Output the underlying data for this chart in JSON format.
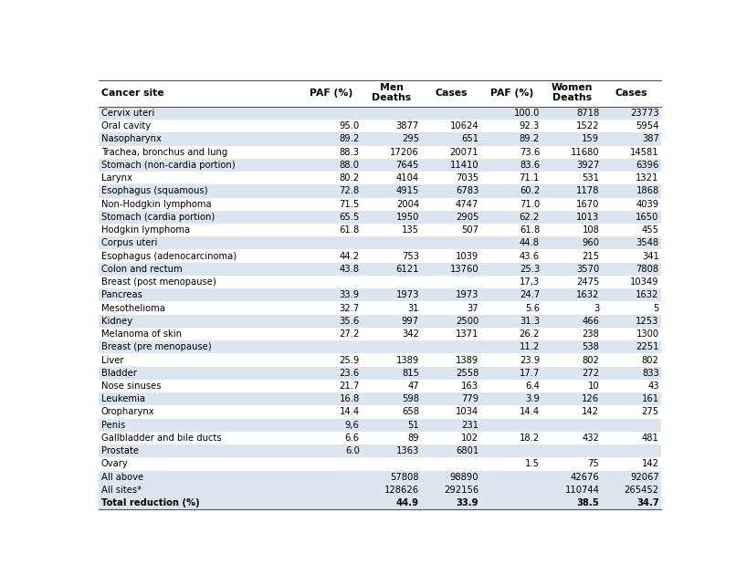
{
  "headers": [
    "Cancer site",
    "PAF (%)",
    "Men\nDeaths",
    "Cases",
    "PAF (%)",
    "Women\nDeaths",
    "Cases"
  ],
  "rows": [
    [
      "Cervix uteri",
      "",
      "",
      "",
      "100.0",
      "8718",
      "23773"
    ],
    [
      "Oral cavity",
      "95.0",
      "3877",
      "10624",
      "92.3",
      "1522",
      "5954"
    ],
    [
      "Nasopharynx",
      "89.2",
      "295",
      "651",
      "89.2",
      "159",
      "387"
    ],
    [
      "Trachea, bronchus and lung",
      "88.3",
      "17206",
      "20071",
      "73.6",
      "11680",
      "14581"
    ],
    [
      "Stomach (non-cardia portion)",
      "88.0",
      "7645",
      "11410",
      "83.6",
      "3927",
      "6396"
    ],
    [
      "Larynx",
      "80.2",
      "4104",
      "7035",
      "71.1",
      "531",
      "1321"
    ],
    [
      "Esophagus (squamous)",
      "72.8",
      "4915",
      "6783",
      "60.2",
      "1178",
      "1868"
    ],
    [
      "Non-Hodgkin lymphoma",
      "71.5",
      "2004",
      "4747",
      "71.0",
      "1670",
      "4039"
    ],
    [
      "Stomach (cardia portion)",
      "65.5",
      "1950",
      "2905",
      "62.2",
      "1013",
      "1650"
    ],
    [
      "Hodgkin lymphoma",
      "61.8",
      "135",
      "507",
      "61.8",
      "108",
      "455"
    ],
    [
      "Corpus uteri",
      "",
      "",
      "",
      "44.8",
      "960",
      "3548"
    ],
    [
      "Esophagus (adenocarcinoma)",
      "44.2",
      "753",
      "1039",
      "43.6",
      "215",
      "341"
    ],
    [
      "Colon and rectum",
      "43.8",
      "6121",
      "13760",
      "25.3",
      "3570",
      "7808"
    ],
    [
      "Breast (post menopause)",
      "",
      "",
      "",
      "17,3",
      "2475",
      "10349"
    ],
    [
      "Pancreas",
      "33.9",
      "1973",
      "1973",
      "24.7",
      "1632",
      "1632"
    ],
    [
      "Mesothelioma",
      "32.7",
      "31",
      "37",
      "5.6",
      "3",
      "5"
    ],
    [
      "Kidney",
      "35.6",
      "997",
      "2500",
      "31.3",
      "466",
      "1253"
    ],
    [
      "Melanoma of skin",
      "27.2",
      "342",
      "1371",
      "26.2",
      "238",
      "1300"
    ],
    [
      "Breast (pre menopause)",
      "",
      "",
      "",
      "11.2",
      "538",
      "2251"
    ],
    [
      "Liver",
      "25.9",
      "1389",
      "1389",
      "23.9",
      "802",
      "802"
    ],
    [
      "Bladder",
      "23.6",
      "815",
      "2558",
      "17.7",
      "272",
      "833"
    ],
    [
      "Nose sinuses",
      "21.7",
      "47",
      "163",
      "6.4",
      "10",
      "43"
    ],
    [
      "Leukemia",
      "16.8",
      "598",
      "779",
      "3.9",
      "126",
      "161"
    ],
    [
      "Oropharynx",
      "14.4",
      "658",
      "1034",
      "14.4",
      "142",
      "275"
    ],
    [
      "Penis",
      "9,6",
      "51",
      "231",
      "",
      "",
      ""
    ],
    [
      "Gallbladder and bile ducts",
      "6.6",
      "89",
      "102",
      "18.2",
      "432",
      "481"
    ],
    [
      "Prostate",
      "6.0",
      "1363",
      "6801",
      "",
      "",
      ""
    ],
    [
      "Ovary",
      "",
      "",
      "",
      "1.5",
      "75",
      "142"
    ],
    [
      "All above",
      "",
      "57808",
      "98890",
      "",
      "42676",
      "92067"
    ],
    [
      "All sites*",
      "",
      "128626",
      "292156",
      "",
      "110744",
      "265452"
    ],
    [
      "Total reduction (%)",
      "",
      "44.9",
      "33.9",
      "",
      "38.5",
      "34.7"
    ]
  ],
  "shaded_rows": [
    0,
    2,
    4,
    6,
    8,
    10,
    12,
    14,
    16,
    18,
    20,
    22,
    24,
    26,
    28,
    29,
    30
  ],
  "bold_last_row": true,
  "row_bg_shaded": "#dce6f0",
  "row_bg_white": "#ffffff",
  "text_color": "#000000",
  "font_size": 7.2,
  "header_font_size": 7.8,
  "col_props": [
    0.298,
    0.09,
    0.088,
    0.088,
    0.09,
    0.088,
    0.088
  ]
}
